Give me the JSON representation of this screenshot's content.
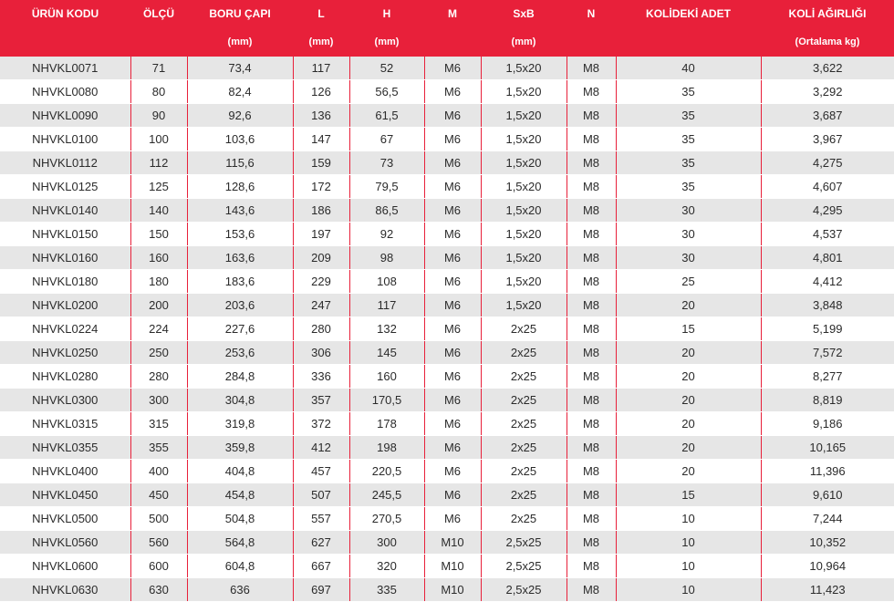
{
  "table": {
    "headers": [
      "ÜRÜN  KODU",
      "ÖLÇÜ",
      "BORU ÇAPI",
      "L",
      "H",
      "M",
      "SxB",
      "N",
      "KOLİDEKİ ADET",
      "KOLİ AĞIRLIĞI"
    ],
    "units": [
      "",
      "",
      "(mm)",
      "(mm)",
      "(mm)",
      "",
      "(mm)",
      "",
      "",
      "(Ortalama kg)"
    ],
    "rows": [
      [
        "NHVKL0071",
        "71",
        "73,4",
        "117",
        "52",
        "M6",
        "1,5x20",
        "M8",
        "40",
        "3,622"
      ],
      [
        "NHVKL0080",
        "80",
        "82,4",
        "126",
        "56,5",
        "M6",
        "1,5x20",
        "M8",
        "35",
        "3,292"
      ],
      [
        "NHVKL0090",
        "90",
        "92,6",
        "136",
        "61,5",
        "M6",
        "1,5x20",
        "M8",
        "35",
        "3,687"
      ],
      [
        "NHVKL0100",
        "100",
        "103,6",
        "147",
        "67",
        "M6",
        "1,5x20",
        "M8",
        "35",
        "3,967"
      ],
      [
        "NHVKL0112",
        "112",
        "115,6",
        "159",
        "73",
        "M6",
        "1,5x20",
        "M8",
        "35",
        "4,275"
      ],
      [
        "NHVKL0125",
        "125",
        "128,6",
        "172",
        "79,5",
        "M6",
        "1,5x20",
        "M8",
        "35",
        "4,607"
      ],
      [
        "NHVKL0140",
        "140",
        "143,6",
        "186",
        "86,5",
        "M6",
        "1,5x20",
        "M8",
        "30",
        "4,295"
      ],
      [
        "NHVKL0150",
        "150",
        "153,6",
        "197",
        "92",
        "M6",
        "1,5x20",
        "M8",
        "30",
        "4,537"
      ],
      [
        "NHVKL0160",
        "160",
        "163,6",
        "209",
        "98",
        "M6",
        "1,5x20",
        "M8",
        "30",
        "4,801"
      ],
      [
        "NHVKL0180",
        "180",
        "183,6",
        "229",
        "108",
        "M6",
        "1,5x20",
        "M8",
        "25",
        "4,412"
      ],
      [
        "NHVKL0200",
        "200",
        "203,6",
        "247",
        "117",
        "M6",
        "1,5x20",
        "M8",
        "20",
        "3,848"
      ],
      [
        "NHVKL0224",
        "224",
        "227,6",
        "280",
        "132",
        "M6",
        "2x25",
        "M8",
        "15",
        "5,199"
      ],
      [
        "NHVKL0250",
        "250",
        "253,6",
        "306",
        "145",
        "M6",
        "2x25",
        "M8",
        "20",
        "7,572"
      ],
      [
        "NHVKL0280",
        "280",
        "284,8",
        "336",
        "160",
        "M6",
        "2x25",
        "M8",
        "20",
        "8,277"
      ],
      [
        "NHVKL0300",
        "300",
        "304,8",
        "357",
        "170,5",
        "M6",
        "2x25",
        "M8",
        "20",
        "8,819"
      ],
      [
        "NHVKL0315",
        "315",
        "319,8",
        "372",
        "178",
        "M6",
        "2x25",
        "M8",
        "20",
        "9,186"
      ],
      [
        "NHVKL0355",
        "355",
        "359,8",
        "412",
        "198",
        "M6",
        "2x25",
        "M8",
        "20",
        "10,165"
      ],
      [
        "NHVKL0400",
        "400",
        "404,8",
        "457",
        "220,5",
        "M6",
        "2x25",
        "M8",
        "20",
        "11,396"
      ],
      [
        "NHVKL0450",
        "450",
        "454,8",
        "507",
        "245,5",
        "M6",
        "2x25",
        "M8",
        "15",
        "9,610"
      ],
      [
        "NHVKL0500",
        "500",
        "504,8",
        "557",
        "270,5",
        "M6",
        "2x25",
        "M8",
        "10",
        "7,244"
      ],
      [
        "NHVKL0560",
        "560",
        "564,8",
        "627",
        "300",
        "M10",
        "2,5x25",
        "M8",
        "10",
        "10,352"
      ],
      [
        "NHVKL0600",
        "600",
        "604,8",
        "667",
        "320",
        "M10",
        "2,5x25",
        "M8",
        "10",
        "10,964"
      ],
      [
        "NHVKL0630",
        "630",
        "636",
        "697",
        "335",
        "M10",
        "2,5x25",
        "M8",
        "10",
        "11,423"
      ]
    ]
  },
  "colors": {
    "header_bg": "#e8203a",
    "header_text": "#ffffff",
    "row_stripe": "#e6e6e6",
    "row_plain": "#ffffff",
    "cell_text": "#2b2b2b"
  }
}
